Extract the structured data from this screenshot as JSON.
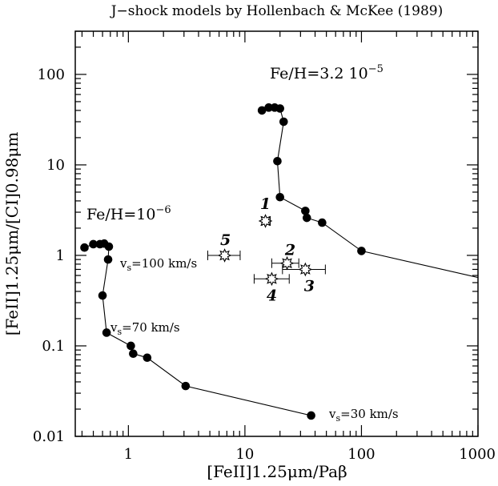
{
  "chart_data": {
    "type": "scatter",
    "title": "J−shock models by Hollenbach & McKee (1989)",
    "xlabel": "[FeII]1.25μm/Paβ",
    "ylabel": "[FeII]1.25μm/[CI]0.98μm",
    "xscale": "log",
    "yscale": "log",
    "xlim": [
      0.35,
      1000
    ],
    "ylim": [
      0.01,
      300
    ],
    "x_tick_labels": [
      "1",
      "10",
      "100",
      "1000"
    ],
    "y_tick_labels": [
      "0.01",
      "0.1",
      "1",
      "10",
      "100"
    ],
    "grid": false,
    "series": [
      {
        "name": "Fe/H=3.2 10⁻⁵",
        "marker": "filled-circle",
        "x": [
          14,
          16,
          18,
          20,
          21.5,
          19,
          20,
          33,
          34,
          46,
          100,
          1000
        ],
        "y": [
          40,
          43,
          43,
          42,
          30,
          11,
          4.4,
          3.1,
          2.6,
          2.3,
          1.12,
          0.57
        ]
      },
      {
        "name": "Fe/H=10⁻⁶",
        "marker": "filled-circle",
        "x": [
          0.42,
          0.5,
          0.57,
          0.62,
          0.68,
          0.67,
          0.6,
          0.65,
          1.05,
          1.1,
          1.45,
          3.1,
          37
        ],
        "y": [
          1.22,
          1.33,
          1.33,
          1.35,
          1.25,
          0.9,
          0.36,
          0.14,
          0.1,
          0.082,
          0.074,
          0.036,
          0.017
        ]
      }
    ],
    "observations": [
      {
        "label": "1",
        "x": 15,
        "y": 2.4,
        "xerr": [
          14,
          16.5
        ]
      },
      {
        "label": "2",
        "x": 23,
        "y": 0.82,
        "xerr": [
          17,
          29
        ]
      },
      {
        "label": "3",
        "x": 33,
        "y": 0.7,
        "xerr": [
          21,
          49
        ]
      },
      {
        "label": "4",
        "x": 17,
        "y": 0.55,
        "xerr": [
          12,
          24
        ]
      },
      {
        "label": "5",
        "x": 6.7,
        "y": 1.0,
        "xerr": [
          4.8,
          9.1
        ]
      }
    ],
    "annotations": [
      {
        "group": "fe_high",
        "text": "Fe/H=3.2 10",
        "sup": "−5"
      },
      {
        "group": "fe_low",
        "text": "Fe/H=10",
        "sup": "−6"
      },
      {
        "group": "v100",
        "text": "=100 km/s"
      },
      {
        "group": "v70",
        "text": "=70 km/s"
      },
      {
        "group": "v30",
        "text": "=30 km/s"
      }
    ],
    "velocity_prefix": "v",
    "velocity_subscript": "s"
  }
}
